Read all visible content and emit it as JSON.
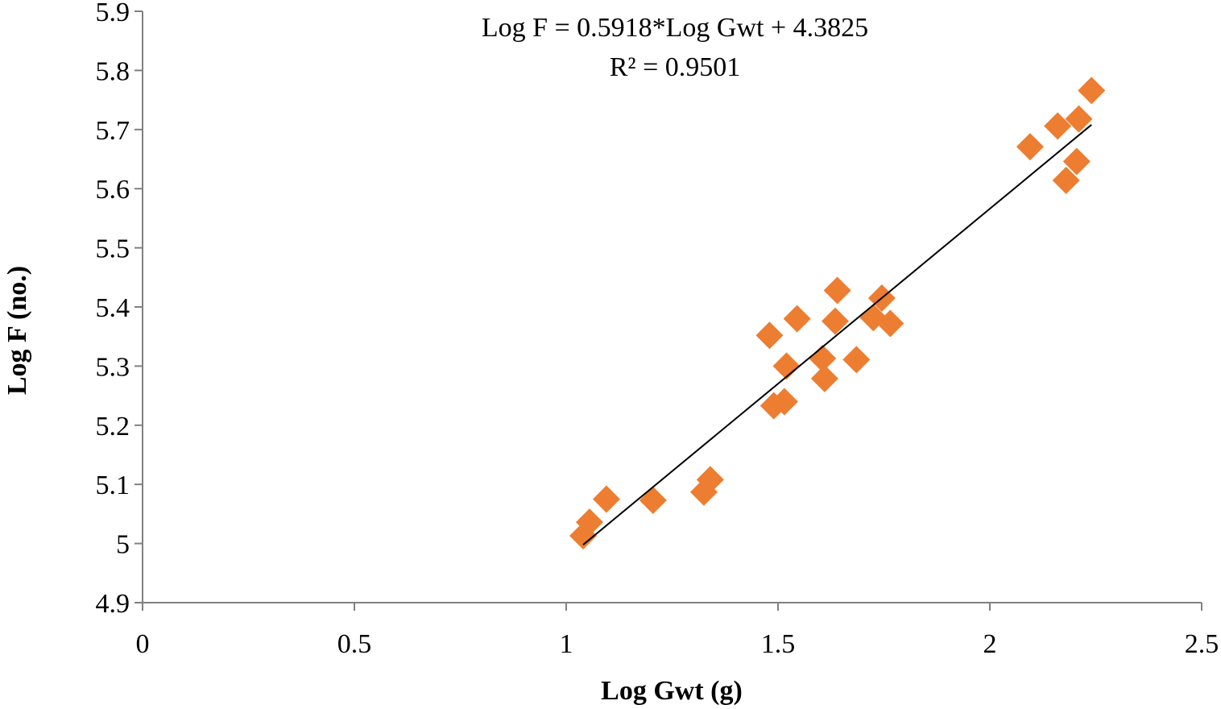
{
  "chart_data": {
    "type": "scatter",
    "title": "",
    "xlabel": "Log Gwt (g)",
    "ylabel": "Log F (no.)",
    "xlim": [
      0,
      2.5
    ],
    "ylim": [
      4.9,
      5.9
    ],
    "x_ticks": [
      "0",
      "0.5",
      "1",
      "1.5",
      "2",
      "2.5"
    ],
    "y_ticks": [
      "4.9",
      "5",
      "5.1",
      "5.2",
      "5.3",
      "5.4",
      "5.5",
      "5.6",
      "5.7",
      "5.8",
      "5.9"
    ],
    "grid": false,
    "legend": "none",
    "marker": "diamond",
    "marker_color": "#ED7D31",
    "trendline_color": "#000000",
    "equation_label": "Log F = 0.5918*Log Gwt + 4.3825",
    "r2_label": "R² = 0.9501",
    "trendline": {
      "slope": 0.5918,
      "intercept": 4.3825,
      "x_range": [
        1.04,
        2.24
      ]
    },
    "points": [
      {
        "x": 1.04,
        "y": 5.013
      },
      {
        "x": 1.055,
        "y": 5.036
      },
      {
        "x": 1.095,
        "y": 5.075
      },
      {
        "x": 1.205,
        "y": 5.073
      },
      {
        "x": 1.325,
        "y": 5.087
      },
      {
        "x": 1.34,
        "y": 5.108
      },
      {
        "x": 1.48,
        "y": 5.352
      },
      {
        "x": 1.49,
        "y": 5.233
      },
      {
        "x": 1.515,
        "y": 5.24
      },
      {
        "x": 1.52,
        "y": 5.3
      },
      {
        "x": 1.545,
        "y": 5.38
      },
      {
        "x": 1.605,
        "y": 5.313
      },
      {
        "x": 1.61,
        "y": 5.279
      },
      {
        "x": 1.635,
        "y": 5.376
      },
      {
        "x": 1.64,
        "y": 5.428
      },
      {
        "x": 1.685,
        "y": 5.311
      },
      {
        "x": 1.725,
        "y": 5.382
      },
      {
        "x": 1.745,
        "y": 5.415
      },
      {
        "x": 1.765,
        "y": 5.372
      },
      {
        "x": 2.095,
        "y": 5.671
      },
      {
        "x": 2.16,
        "y": 5.706
      },
      {
        "x": 2.18,
        "y": 5.614
      },
      {
        "x": 2.205,
        "y": 5.646
      },
      {
        "x": 2.21,
        "y": 5.718
      },
      {
        "x": 2.24,
        "y": 5.766
      }
    ]
  }
}
